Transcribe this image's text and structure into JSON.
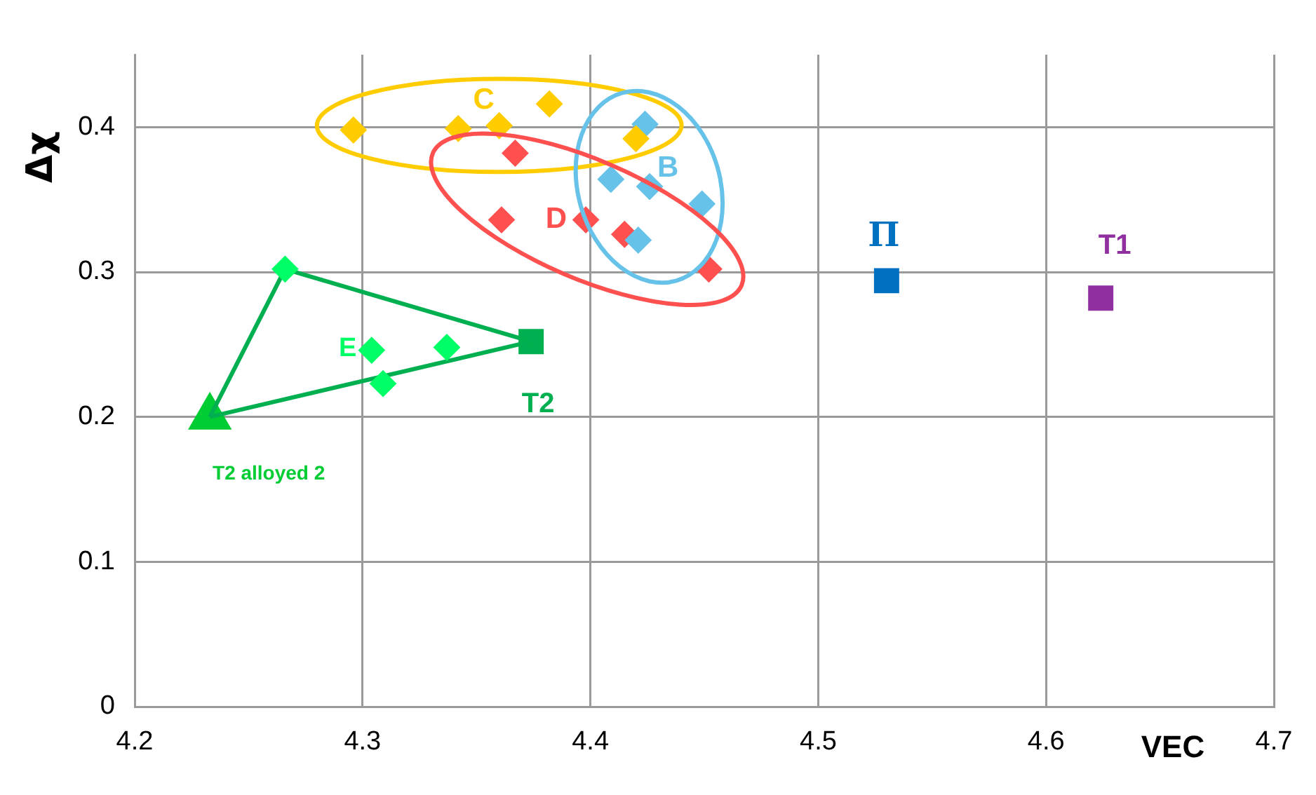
{
  "chart_data": {
    "type": "scatter",
    "xlabel": "VEC",
    "ylabel": "Δχ",
    "xlim": [
      4.2,
      4.7
    ],
    "xticks": [
      4.2,
      4.3,
      4.4,
      4.5,
      4.6,
      4.7
    ],
    "ylim": [
      0,
      0.45
    ],
    "yticks": [
      0,
      0.1,
      0.2,
      0.3,
      0.4
    ],
    "grid": true,
    "legend": false,
    "series": [
      {
        "name": "C",
        "color": "#ffcc00",
        "marker": "diamond",
        "x": [
          4.296,
          4.342,
          4.36,
          4.382,
          4.42
        ],
        "values": [
          0.398,
          0.399,
          0.401,
          0.416,
          0.392
        ]
      },
      {
        "name": "B",
        "color": "#66c2e8",
        "marker": "diamond",
        "x": [
          4.424,
          4.409,
          4.426,
          4.449,
          4.421
        ],
        "values": [
          0.402,
          0.364,
          0.359,
          0.347,
          0.322
        ]
      },
      {
        "name": "D",
        "color": "#ff5050",
        "marker": "diamond",
        "x": [
          4.367,
          4.361,
          4.398,
          4.415,
          4.452
        ],
        "values": [
          0.382,
          0.336,
          0.336,
          0.326,
          0.302
        ]
      },
      {
        "name": "E",
        "color": "#00ff66",
        "marker": "diamond",
        "x": [
          4.266,
          4.304,
          4.337,
          4.309
        ],
        "values": [
          0.302,
          0.246,
          0.248,
          0.223
        ]
      },
      {
        "type": "line",
        "color": "#00b050",
        "marker": "none",
        "x": [
          4.233,
          4.266,
          4.374
        ],
        "values": [
          0.2,
          0.302,
          0.252
        ]
      },
      {
        "type": "line",
        "color": "#00b050",
        "marker": "none",
        "x": [
          4.233,
          4.374
        ],
        "values": [
          0.2,
          0.252
        ]
      },
      {
        "name": "Π",
        "color": "#0070c0",
        "marker": "square",
        "x": [
          4.53
        ],
        "values": [
          0.294
        ]
      },
      {
        "name": "T1",
        "color": "#9030a0",
        "marker": "square",
        "x": [
          4.624
        ],
        "values": [
          0.282
        ]
      },
      {
        "name": "T2",
        "color": "#00b050",
        "marker": "square",
        "x": [
          4.374
        ],
        "values": [
          0.252
        ]
      },
      {
        "name": "T2 alloyed 2",
        "color": "#00cc33",
        "marker": "triangle",
        "x": [
          4.233
        ],
        "values": [
          0.2
        ]
      }
    ]
  }
}
